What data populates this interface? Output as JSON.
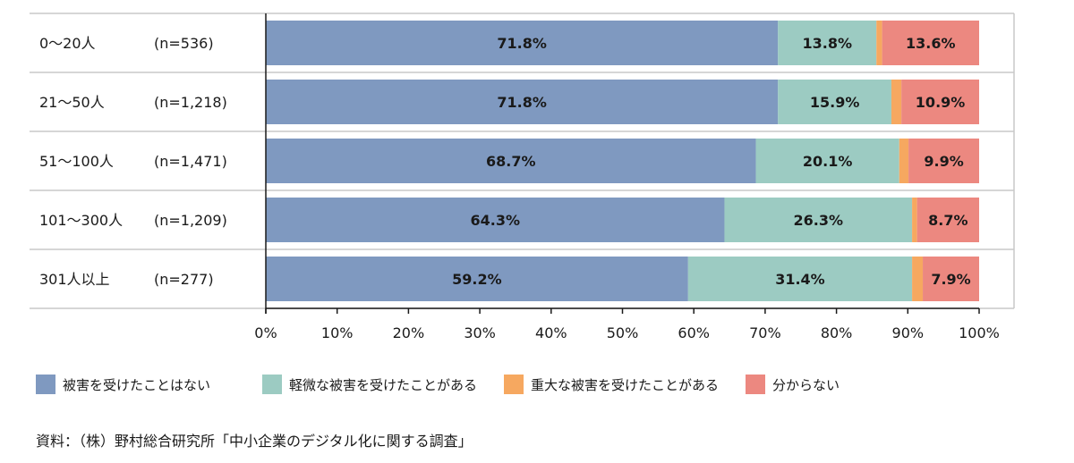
{
  "chart_data": {
    "type": "bar",
    "orientation": "horizontal",
    "stacked": true,
    "categories": [
      "0～20人",
      "21～50人",
      "51～100人",
      "101～300人",
      "301人以上"
    ],
    "sample_sizes": [
      "(n=536)",
      "(n=1,218)",
      "(n=1,471)",
      "(n=1,209)",
      "(n=277)"
    ],
    "series": [
      {
        "name": "被害を受けたことはない",
        "color": "#7f99c0",
        "values": [
          71.8,
          71.8,
          68.7,
          64.3,
          59.2
        ],
        "labels": [
          "71.8%",
          "71.8%",
          "68.7%",
          "64.3%",
          "59.2%"
        ]
      },
      {
        "name": "軽微な被害を受けたことがある",
        "color": "#9ccbc2",
        "values": [
          13.8,
          15.9,
          20.1,
          26.3,
          31.4
        ],
        "labels": [
          "13.8%",
          "15.9%",
          "20.1%",
          "26.3%",
          "31.4%"
        ]
      },
      {
        "name": "重大な被害を受けたことがある",
        "color": "#f6a860",
        "values": [
          0.8,
          1.4,
          1.3,
          0.7,
          1.5
        ],
        "labels": [
          "",
          "",
          "",
          "",
          ""
        ]
      },
      {
        "name": "分からない",
        "color": "#ec8880",
        "values": [
          13.6,
          10.9,
          9.9,
          8.7,
          7.9
        ],
        "labels": [
          "13.6%",
          "10.9%",
          "9.9%",
          "8.7%",
          "7.9%"
        ]
      }
    ],
    "xlim": [
      0,
      100
    ],
    "x_ticks": [
      0,
      10,
      20,
      30,
      40,
      50,
      60,
      70,
      80,
      90,
      100
    ],
    "x_tick_labels": [
      "0%",
      "10%",
      "20%",
      "30%",
      "40%",
      "50%",
      "60%",
      "70%",
      "80%",
      "90%",
      "100%"
    ],
    "legend_position": "bottom-left",
    "grid": false
  },
  "source_note": "資料：（株）野村総合研究所「中小企業のデジタル化に関する調査」"
}
